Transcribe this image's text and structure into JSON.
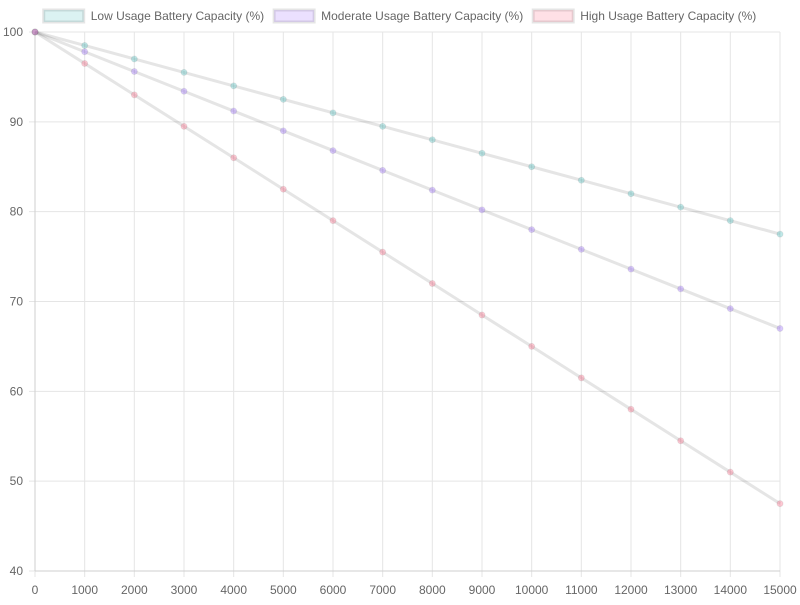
{
  "chart_data": {
    "type": "line",
    "title": "",
    "xlabel": "",
    "ylabel": "",
    "x": [
      0,
      1000,
      2000,
      3000,
      4000,
      5000,
      6000,
      7000,
      8000,
      9000,
      10000,
      11000,
      12000,
      13000,
      14000,
      15000
    ],
    "xlim": [
      0,
      15000
    ],
    "ylim": [
      40,
      100
    ],
    "x_ticks": [
      "0",
      "1000",
      "2000",
      "3000",
      "4000",
      "5000",
      "6000",
      "7000",
      "8000",
      "9000",
      "10000",
      "11000",
      "12000",
      "13000",
      "14000",
      "15000"
    ],
    "y_ticks": [
      "100",
      "90",
      "80",
      "70",
      "60",
      "50",
      "40"
    ],
    "grid": true,
    "legend_position": "top",
    "series": [
      {
        "name": "Low Usage Battery Capacity (%)",
        "color": "#4bc0c0",
        "values": [
          100,
          98.5,
          97,
          95.5,
          94,
          92.5,
          91,
          89.5,
          88,
          86.5,
          85,
          83.5,
          82,
          80.5,
          79,
          77.5
        ]
      },
      {
        "name": "Moderate Usage Battery Capacity (%)",
        "color": "#9966ff",
        "values": [
          100,
          97.8,
          95.6,
          93.4,
          91.2,
          89,
          86.8,
          84.6,
          82.4,
          80.2,
          78,
          75.8,
          73.6,
          71.4,
          69.2,
          67
        ]
      },
      {
        "name": "High Usage Battery Capacity (%)",
        "color": "#ff6384",
        "values": [
          100,
          96.5,
          93,
          89.5,
          86,
          82.5,
          79,
          75.5,
          72,
          68.5,
          65,
          61.5,
          58,
          54.5,
          51,
          47.5
        ]
      }
    ]
  }
}
